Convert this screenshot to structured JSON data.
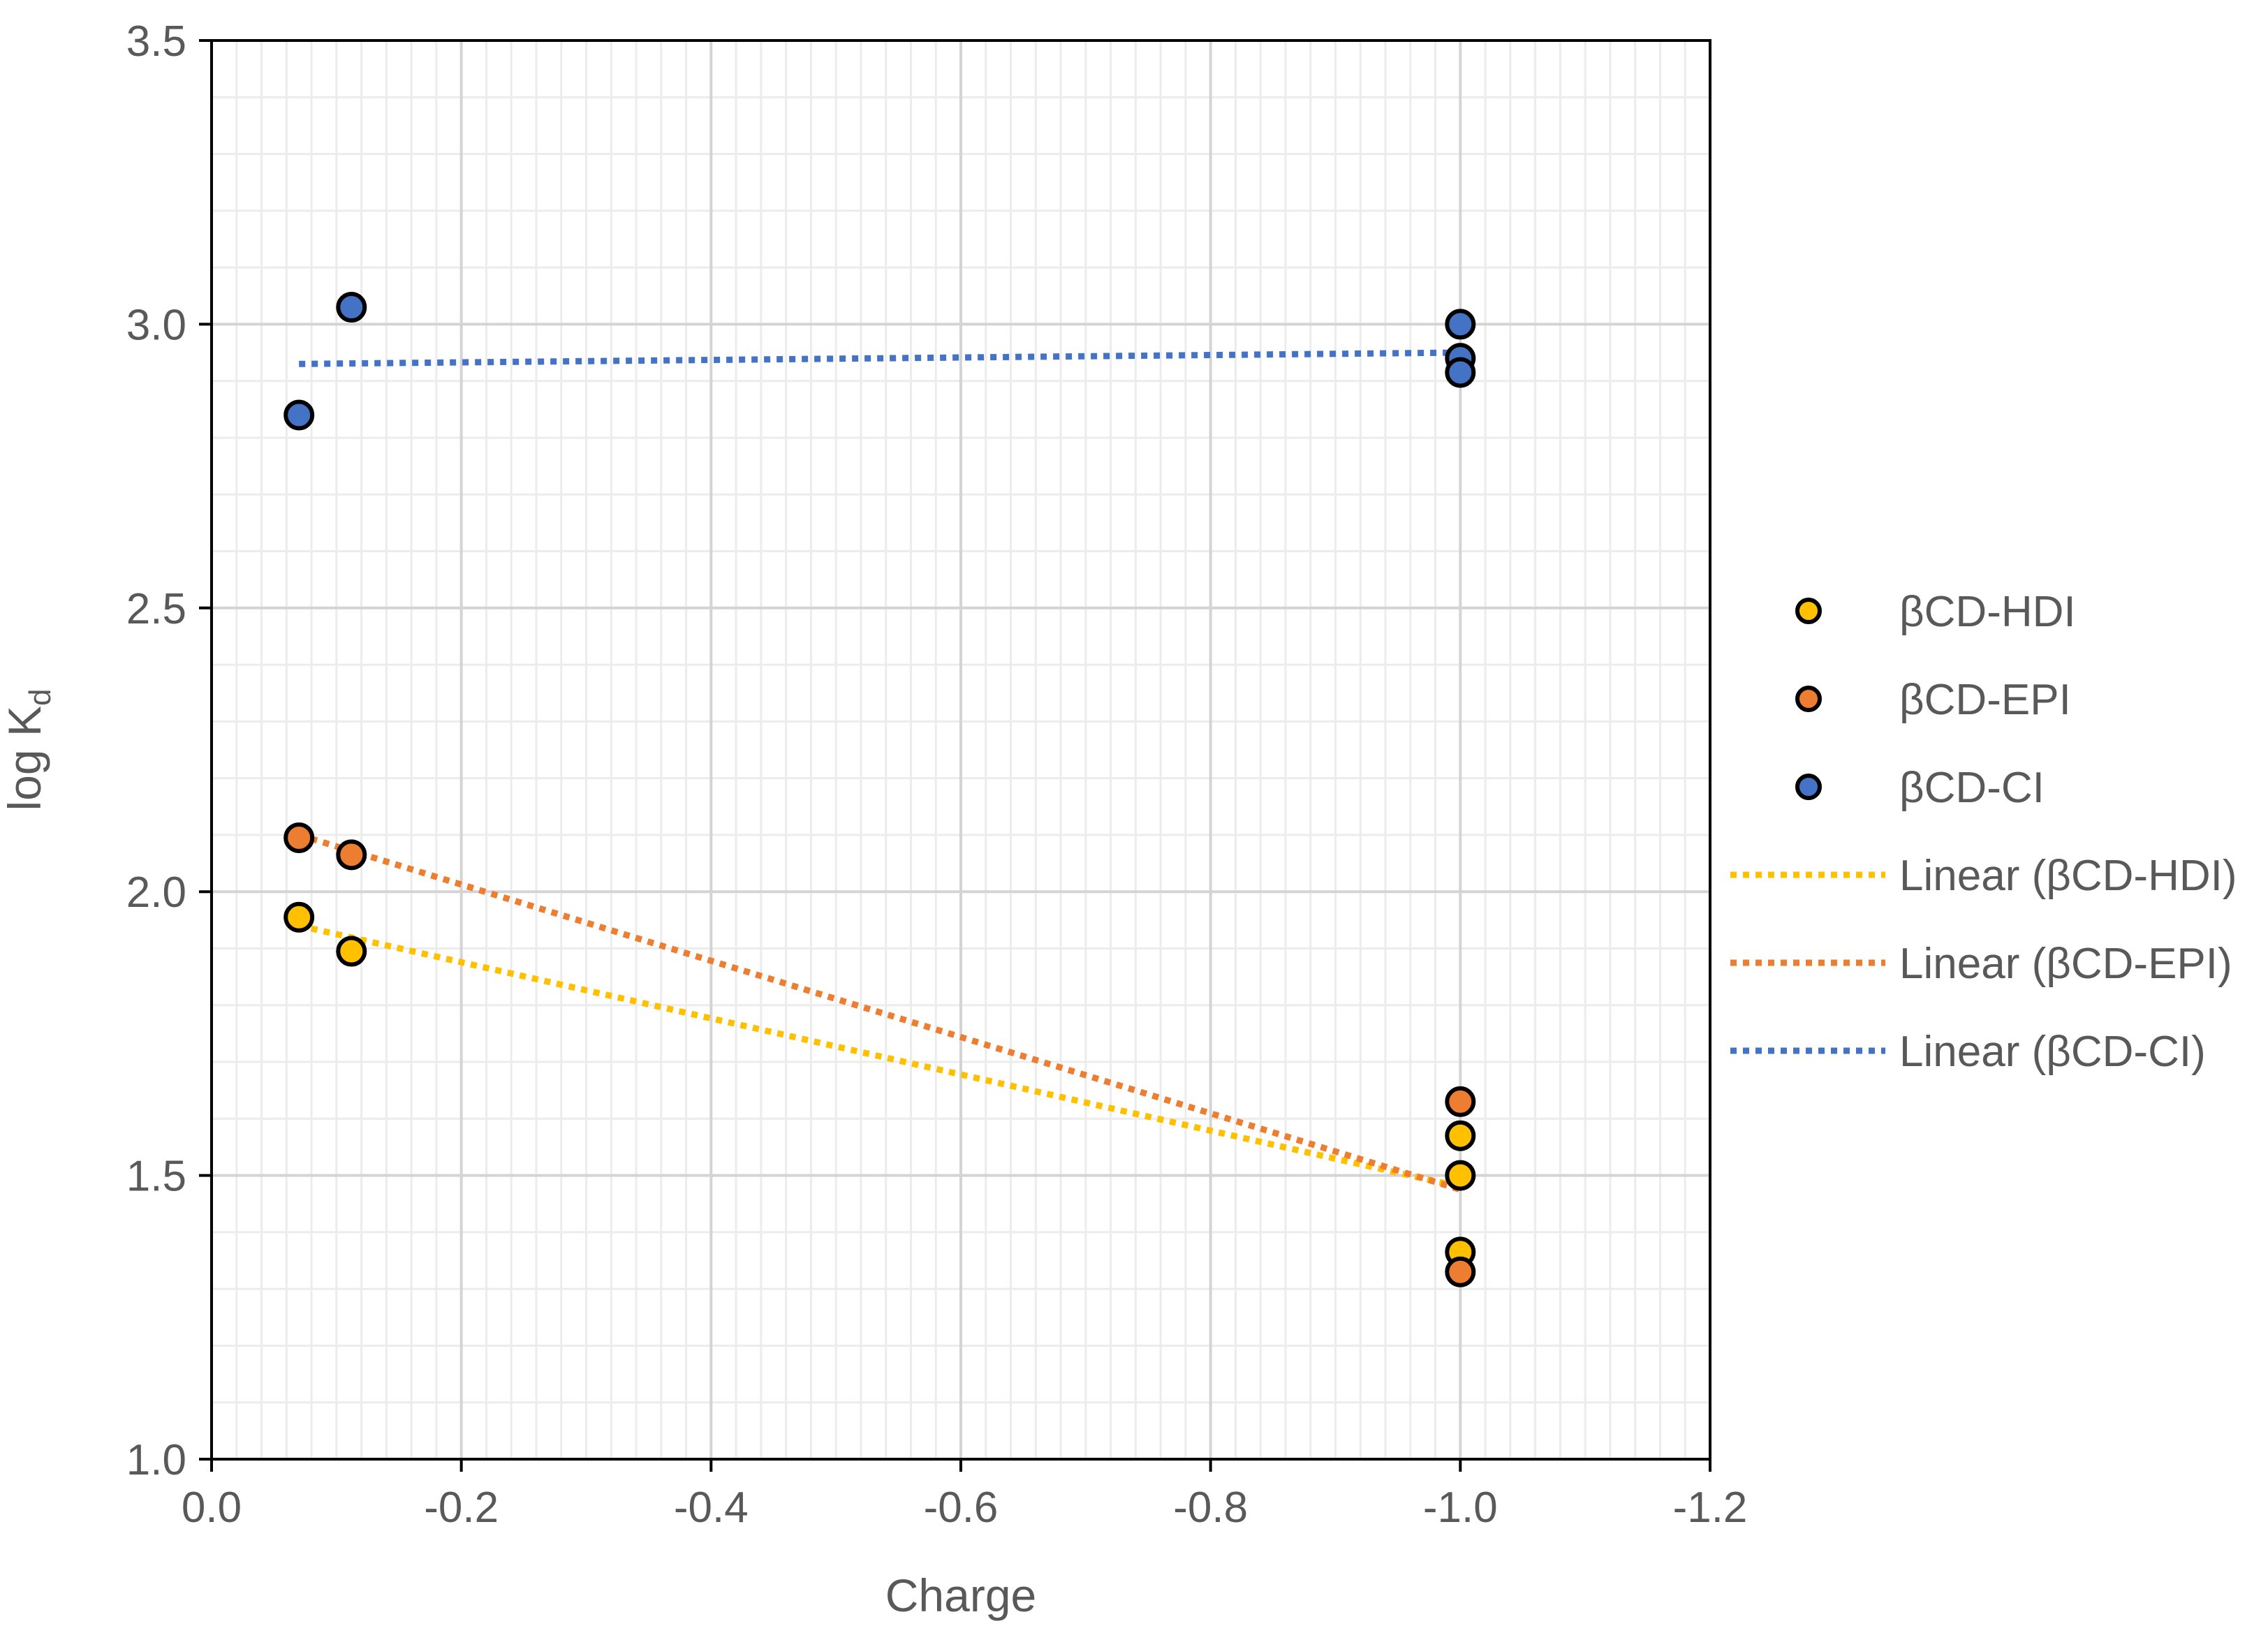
{
  "chart_data": {
    "type": "scatter",
    "title": "",
    "xlabel": "Charge",
    "ylabel_main": "log K",
    "ylabel_sub": "d",
    "xlim": [
      0.0,
      -1.2
    ],
    "ylim": [
      1.0,
      3.5
    ],
    "x_ticks": [
      0.0,
      -0.2,
      -0.4,
      -0.6,
      -0.8,
      -1.0,
      -1.2
    ],
    "x_tick_labels": [
      "0.0",
      "-0.2",
      "-0.4",
      "-0.6",
      "-0.8",
      "-1.0",
      "-1.2"
    ],
    "y_ticks": [
      1.0,
      1.5,
      2.0,
      2.5,
      3.0,
      3.5
    ],
    "y_tick_labels": [
      "1.0",
      "1.5",
      "2.0",
      "2.5",
      "3.0",
      "3.5"
    ],
    "grid": true,
    "legend_position": "right",
    "series": [
      {
        "name": "βCD-HDI",
        "color": "#FFC000",
        "points": [
          [
            -0.07,
            1.955
          ],
          [
            -0.112,
            1.895
          ],
          [
            -1.0,
            1.57
          ],
          [
            -1.0,
            1.5
          ],
          [
            -1.0,
            1.365
          ]
        ],
        "trend_name": "Linear (βCD-HDI)",
        "trend": [
          [
            -0.07,
            1.94
          ],
          [
            -1.0,
            1.48
          ]
        ]
      },
      {
        "name": "βCD-EPI",
        "color": "#ED7D31",
        "points": [
          [
            -0.07,
            2.095
          ],
          [
            -0.112,
            2.065
          ],
          [
            -1.0,
            1.63
          ],
          [
            -1.0,
            1.33
          ]
        ],
        "trend_name": "Linear (βCD-EPI)",
        "trend": [
          [
            -0.07,
            2.1
          ],
          [
            -1.0,
            1.475
          ]
        ]
      },
      {
        "name": "βCD-CI",
        "color": "#4472C4",
        "points": [
          [
            -0.07,
            2.84
          ],
          [
            -0.112,
            3.03
          ],
          [
            -1.0,
            3.0
          ],
          [
            -1.0,
            2.94
          ],
          [
            -1.0,
            2.915
          ]
        ],
        "trend_name": "Linear (βCD-CI)",
        "trend": [
          [
            -0.07,
            2.93
          ],
          [
            -1.0,
            2.95
          ]
        ]
      }
    ]
  }
}
